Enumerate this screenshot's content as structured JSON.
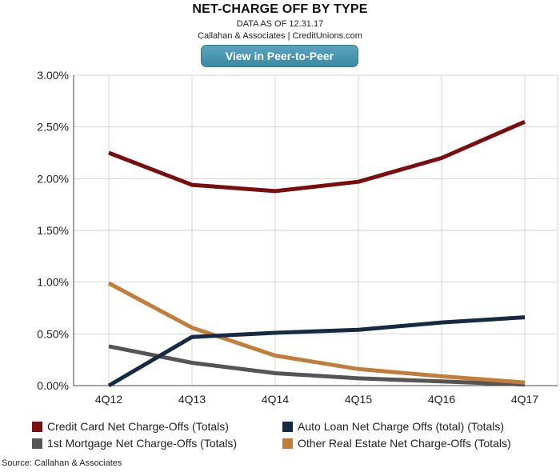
{
  "header": {
    "title": "NET-CHARGE OFF BY TYPE",
    "subtitle": "DATA AS OF 12.31.17",
    "credit": "Callahan & Associates | CreditUnions.com",
    "button_label": "View in Peer-to-Peer"
  },
  "source": "Source: Callahan & Associates",
  "colors": {
    "credit_card": "#7a0d0d",
    "auto_loan": "#172a43",
    "mortgage": "#555555",
    "real_estate": "#c17d39",
    "button": "#4a97b1"
  },
  "chart_data": {
    "type": "line",
    "title": "NET-CHARGE OFF BY TYPE",
    "xlabel": "",
    "ylabel": "",
    "categories": [
      "4Q12",
      "4Q13",
      "4Q14",
      "4Q15",
      "4Q16",
      "4Q17"
    ],
    "ylim": [
      0,
      3.0
    ],
    "yticks": [
      0,
      0.5,
      1.0,
      1.5,
      2.0,
      2.5,
      3.0
    ],
    "ytick_labels": [
      "0.00%",
      "0.50%",
      "1.00%",
      "1.50%",
      "2.00%",
      "2.50%",
      "3.00%"
    ],
    "grid": true,
    "legend_position": "bottom",
    "series": [
      {
        "key": "credit_card",
        "name": "Credit Card Net Charge-Offs (Totals)",
        "values": [
          2.25,
          1.94,
          1.88,
          1.97,
          2.2,
          2.55
        ]
      },
      {
        "key": "auto_loan",
        "name": "Auto Loan Net Charge Offs (total) (Totals)",
        "values": [
          0.0,
          0.47,
          0.51,
          0.54,
          0.61,
          0.66
        ]
      },
      {
        "key": "mortgage",
        "name": "1st Mortgage Net Charge-Offs (Totals)",
        "values": [
          0.38,
          0.22,
          0.12,
          0.07,
          0.04,
          0.01
        ]
      },
      {
        "key": "real_estate",
        "name": "Other Real Estate Net Charge-Offs (Totals)",
        "values": [
          0.99,
          0.56,
          0.29,
          0.16,
          0.09,
          0.03
        ]
      }
    ]
  }
}
